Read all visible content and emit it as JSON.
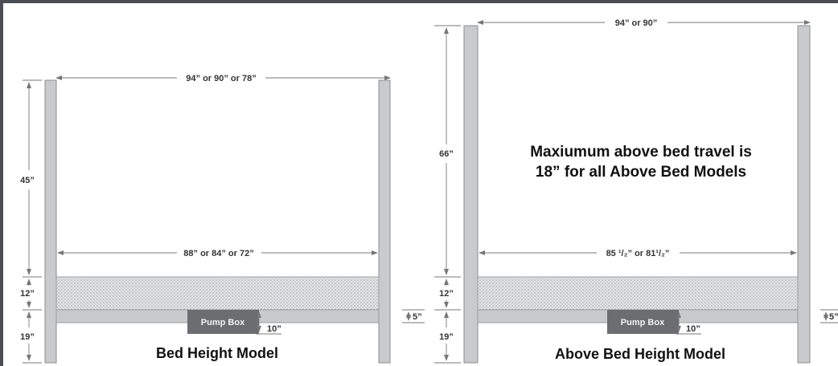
{
  "diagrams": [
    {
      "title": "Bed Height Model",
      "top_width": "94” or 90” or 78”",
      "inner_width": "88” or 84” or 72”",
      "post_height_above": "45”",
      "mattress_height": "12”",
      "base_height": "19”",
      "pump_box": "Pump Box",
      "pump_clearance": "10”",
      "side_offset": "5”"
    },
    {
      "title": "Above Bed Height Model",
      "top_width": "94” or 90”",
      "inner_width": "85 ¹/₂” or 81¹/₂”",
      "post_height_above": "66”",
      "mattress_height": "12”",
      "base_height": "19”",
      "pump_box": "Pump Box",
      "pump_clearance": "10”",
      "side_offset": "5”",
      "note_line1": "Maxiumum above bed travel is",
      "note_line2": "18” for all Above Bed Models"
    }
  ],
  "colors": {
    "frame_border": "#4b4f55",
    "post_fill": "#c9cacc",
    "pump_box_fill": "#6b6d71",
    "mattress_dots": "#9a9c9f"
  }
}
